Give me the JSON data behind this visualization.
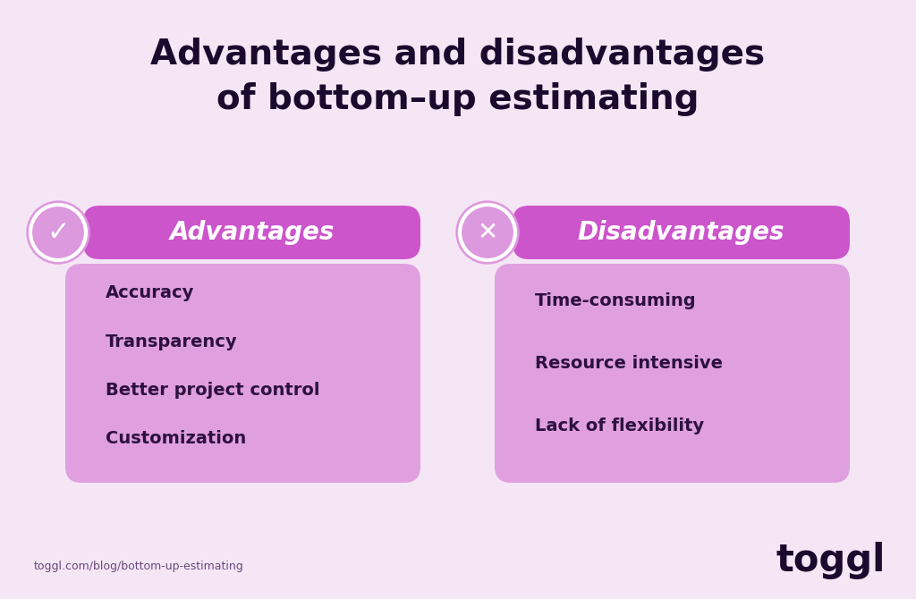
{
  "background_color": "#f5e6f5",
  "title_line1": "Advantages and disadvantages",
  "title_line2": "of bottom–up estimating",
  "title_color": "#1a0a2e",
  "title_fontsize": 28,
  "header_bar_color": "#cc55cc",
  "header_text_color": "#ffffff",
  "content_box_color": "#e0a0e0",
  "content_text_color": "#2d1040",
  "icon_circle_color": "#dd99dd",
  "advantages_label": "Advantages",
  "disadvantages_label": "Disadvantages",
  "advantages_items": [
    "Accuracy",
    "Transparency",
    "Better project control",
    "Customization"
  ],
  "disadvantages_items": [
    "Time-consuming",
    "Resource intensive",
    "Lack of flexibility"
  ],
  "footer_url": "toggl.com/blog/bottom-up-estimating",
  "footer_url_color": "#6a4a7a",
  "footer_brand": "toggl",
  "footer_brand_color": "#1a0a2e",
  "item_fontsize": 14,
  "header_fontsize": 20
}
